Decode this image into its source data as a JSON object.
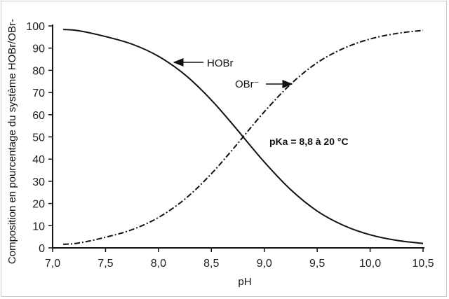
{
  "chart_data": {
    "type": "line",
    "xlabel": "pH",
    "ylabel": "Composition en pourcentage du système HOBr/OBr-",
    "xlim": [
      7.0,
      10.5
    ],
    "ylim": [
      0,
      100
    ],
    "x_ticks": [
      7.0,
      7.5,
      8.0,
      8.5,
      9.0,
      9.5,
      10.0,
      10.5
    ],
    "x_tick_labels": [
      "7,0",
      "7,5",
      "8,0",
      "8,5",
      "9,0",
      "9,5",
      "10,0",
      "10,5"
    ],
    "y_ticks": [
      0,
      10,
      20,
      30,
      40,
      50,
      60,
      70,
      80,
      90,
      100
    ],
    "y_tick_labels": [
      "0",
      "10",
      "20",
      "30",
      "40",
      "50",
      "60",
      "70",
      "80",
      "90",
      "100"
    ],
    "grid": false,
    "series": [
      {
        "name": "HOBr",
        "style": "solid",
        "x": [
          7.1,
          7.25,
          7.5,
          7.75,
          8.0,
          8.25,
          8.5,
          8.75,
          8.8,
          9.0,
          9.25,
          9.5,
          9.75,
          10.0,
          10.25,
          10.5
        ],
        "y": [
          98.4,
          97.8,
          95.2,
          91.8,
          86.3,
          78.0,
          66.6,
          52.9,
          50.0,
          38.7,
          26.2,
          16.6,
          10.1,
          5.9,
          3.4,
          2.0
        ]
      },
      {
        "name": "OBr⁻",
        "style": "dash-dot",
        "x": [
          7.1,
          7.25,
          7.5,
          7.75,
          8.0,
          8.25,
          8.5,
          8.75,
          8.8,
          9.0,
          9.25,
          9.5,
          9.75,
          10.0,
          10.25,
          10.5
        ],
        "y": [
          1.6,
          2.2,
          4.8,
          8.2,
          13.7,
          22.0,
          33.4,
          47.1,
          50.0,
          61.3,
          73.8,
          83.4,
          89.9,
          94.1,
          96.6,
          98.0
        ]
      }
    ],
    "annotations": [
      {
        "text": "HOBr",
        "arrow_to_series": "HOBr"
      },
      {
        "text": "OBr⁻",
        "arrow_to_series": "OBr⁻"
      },
      {
        "text": "pKa = 8,8 à 20 °C"
      }
    ]
  }
}
